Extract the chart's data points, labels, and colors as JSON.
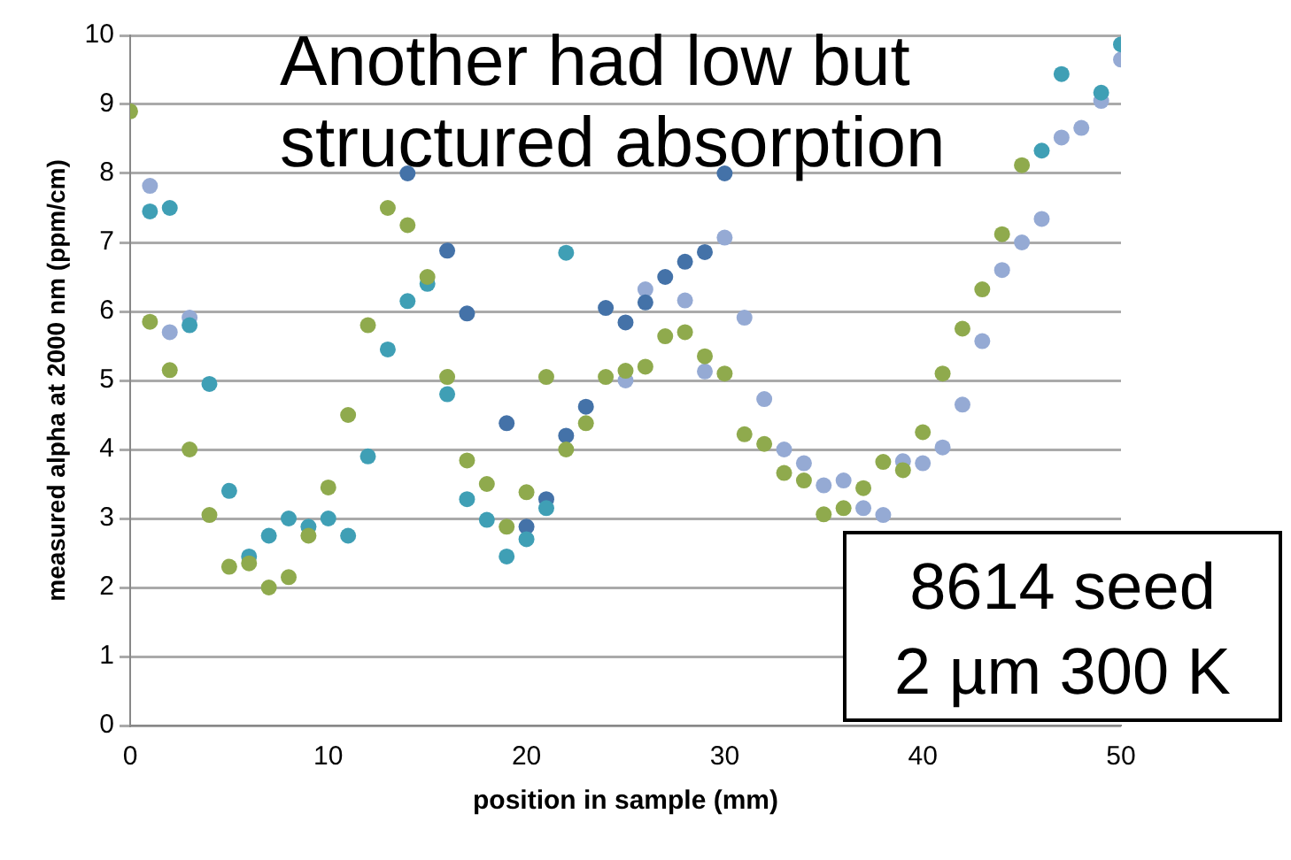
{
  "chart_data": {
    "type": "scatter",
    "xlabel": "position in sample (mm)",
    "ylabel": "measured alpha at 2000 nm (ppm/cm)",
    "annotations": [
      "Another had low but structured absorption",
      "8614 seed\n2 µm 300 K"
    ],
    "xlim": [
      0,
      50
    ],
    "xticks": [
      0,
      10,
      20,
      30,
      40,
      50
    ],
    "ylim": [
      0,
      10
    ],
    "yticks": [
      0,
      1,
      2,
      3,
      4,
      5,
      6,
      7,
      8,
      9,
      10
    ],
    "grid": "y",
    "marker": "circle",
    "series": [
      {
        "color": "#8faa4d",
        "x": [
          0,
          1,
          2,
          3,
          4,
          5,
          6,
          7,
          8,
          9,
          10,
          11,
          12,
          13,
          14,
          15,
          16,
          17,
          18,
          19,
          20,
          21,
          22,
          23,
          24,
          25,
          26,
          27,
          28,
          29,
          30,
          31,
          32,
          33,
          34,
          35,
          36,
          37,
          38,
          39,
          40,
          41,
          42,
          43,
          44,
          45
        ],
        "values": [
          8.9,
          5.85,
          5.15,
          4.0,
          3.05,
          2.3,
          2.35,
          2.0,
          2.15,
          2.75,
          3.45,
          4.5,
          5.8,
          7.5,
          7.25,
          6.5,
          5.05,
          3.84,
          3.5,
          2.88,
          3.38,
          5.05,
          4.0,
          4.38,
          5.05,
          5.14,
          5.2,
          5.64,
          5.7,
          5.35,
          5.1,
          4.22,
          4.08,
          3.66,
          3.55,
          3.06,
          3.15,
          3.44,
          3.82,
          3.7,
          4.25,
          5.1,
          5.75,
          6.32,
          7.12,
          8.12
        ]
      },
      {
        "color": "#3f9fb5",
        "x": [
          1,
          2,
          3,
          4,
          5,
          6,
          7,
          8,
          9,
          10,
          11,
          12,
          13,
          14,
          15,
          16,
          17,
          18,
          19,
          20,
          21,
          22,
          46,
          47,
          49,
          50
        ],
        "values": [
          7.45,
          7.5,
          5.8,
          4.95,
          3.4,
          2.45,
          2.75,
          3.0,
          2.88,
          3.0,
          2.75,
          3.9,
          5.45,
          6.15,
          6.4,
          4.8,
          3.28,
          2.98,
          2.45,
          2.7,
          3.15,
          6.85,
          8.33,
          9.44,
          9.17,
          9.87
        ]
      },
      {
        "color": "#4472a8",
        "x": [
          14,
          16,
          17,
          19,
          20,
          21,
          22,
          23,
          24,
          25,
          26,
          27,
          28,
          29,
          30
        ],
        "values": [
          8.0,
          6.88,
          5.97,
          4.38,
          2.88,
          3.28,
          4.2,
          4.62,
          6.05,
          5.84,
          6.13,
          6.5,
          6.72,
          6.86,
          8.0
        ]
      },
      {
        "color": "#95aad4",
        "x": [
          1,
          2,
          3,
          25,
          26,
          28,
          29,
          30,
          31,
          32,
          33,
          34,
          35,
          36,
          37,
          38,
          39,
          40,
          41,
          42,
          43,
          44,
          45,
          46,
          47,
          48,
          49,
          50
        ],
        "values": [
          7.82,
          5.7,
          5.91,
          5.0,
          6.32,
          6.16,
          5.13,
          7.07,
          5.91,
          4.73,
          4.0,
          3.8,
          3.48,
          3.55,
          3.15,
          3.05,
          3.83,
          3.8,
          4.03,
          4.65,
          5.57,
          6.6,
          7.0,
          7.34,
          8.52,
          8.66,
          9.05,
          9.65
        ]
      }
    ]
  }
}
